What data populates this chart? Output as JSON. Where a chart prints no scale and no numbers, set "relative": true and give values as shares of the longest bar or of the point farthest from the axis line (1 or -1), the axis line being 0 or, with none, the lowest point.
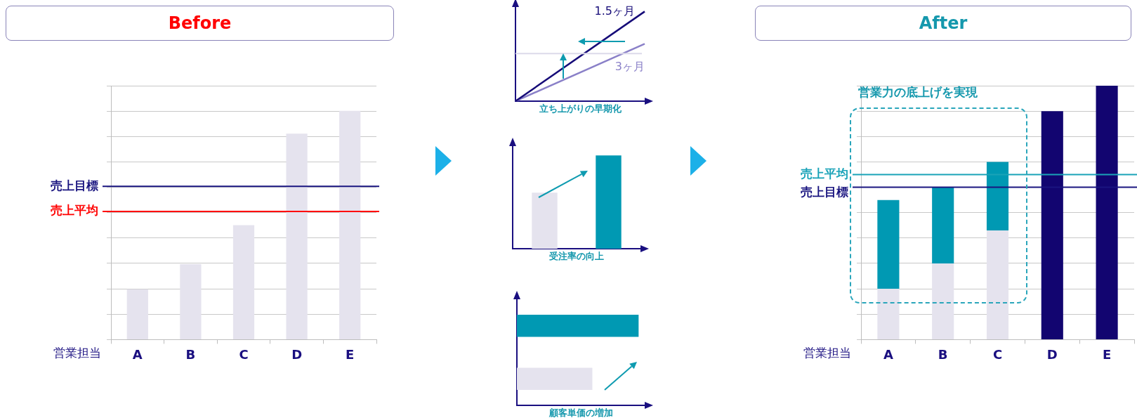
{
  "chart_data": [
    {
      "type": "bar",
      "title": "Before",
      "xlabel": "営業担当",
      "categories": [
        "A",
        "B",
        "C",
        "D",
        "E"
      ],
      "values": [
        0.22,
        0.33,
        0.5,
        0.9,
        1
      ],
      "color": "#e5e3ee",
      "relative": true,
      "grid": "y",
      "ref_lines": [
        {
          "axis": "y",
          "value": 0.67,
          "label": "売上目標",
          "color": "#1a1580"
        },
        {
          "axis": "y",
          "value": 0.56,
          "label": "売上平均",
          "color": "#ff0000"
        }
      ]
    },
    {
      "type": "line",
      "xlabel": "立ち上がりの早期化",
      "categories": [
        null,
        null
      ],
      "relative": true,
      "series": [
        {
          "name": "1.5ヶ月",
          "color": "#150a78",
          "values": [
            0,
            1
          ]
        },
        {
          "name": "3ヶ月",
          "color": "#8a80c8",
          "values": [
            0,
            0.64
          ]
        }
      ],
      "ref_lines": [
        {
          "axis": "y",
          "value": 0.53,
          "color": "#dcdaea"
        }
      ]
    },
    {
      "type": "bar",
      "xlabel": "受注率の向上",
      "categories": [
        null,
        null
      ],
      "values": [
        0.6,
        1
      ],
      "colors": [
        "#e5e3ee",
        "#0099b3"
      ],
      "relative": true
    },
    {
      "type": "bar",
      "orientation": "horizontal",
      "xlabel": "顧客単価の増加",
      "categories": [
        null,
        null
      ],
      "values": [
        1,
        0.62
      ],
      "colors": [
        "#0099b3",
        "#e5e3ee"
      ],
      "relative": true
    },
    {
      "type": "bar",
      "title": "After",
      "xlabel": "営業担当",
      "categories": [
        "A",
        "B",
        "C",
        "D",
        "E"
      ],
      "stacked": true,
      "relative": true,
      "grid": "y",
      "series": [
        {
          "color": "#e5e3ee",
          "values": [
            0.2,
            0.3,
            0.43,
            null,
            null
          ]
        },
        {
          "color": "#0099b3",
          "values": [
            0.35,
            0.3,
            0.27,
            null,
            null
          ]
        },
        {
          "color": "#120570",
          "values": [
            null,
            null,
            null,
            0.9,
            1
          ]
        }
      ],
      "ref_lines": [
        {
          "axis": "y",
          "value": 0.65,
          "label": "売上平均",
          "color": "#1aa3b8"
        },
        {
          "axis": "y",
          "value": 0.6,
          "label": "売上目標",
          "color": "#1a1580"
        }
      ],
      "annotations": [
        "営業力の底上げを実現"
      ]
    }
  ]
}
